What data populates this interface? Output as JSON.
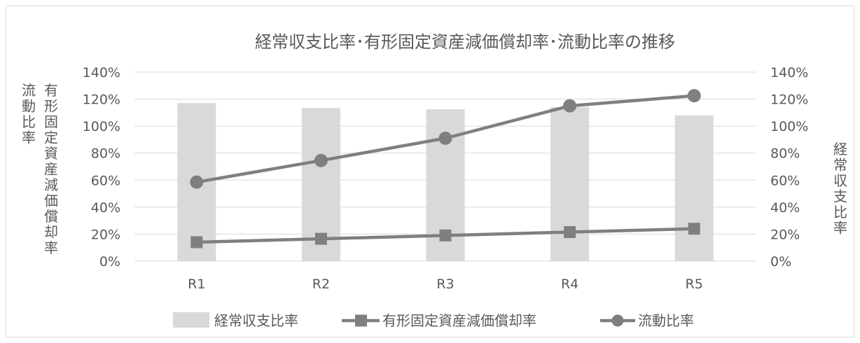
{
  "chart_data": {
    "type": "bar",
    "title": "経常収支比率･有形固定資産減価償却率･流動比率の推移",
    "categories": [
      "R1",
      "R2",
      "R3",
      "R4",
      "R5"
    ],
    "left_axis": {
      "labels": [
        "流動比率",
        "有形固定資産減価償却率"
      ],
      "ylim": [
        0,
        140
      ],
      "ticks": [
        "0%",
        "20%",
        "40%",
        "60%",
        "80%",
        "100%",
        "120%",
        "140%"
      ]
    },
    "right_axis": {
      "label": "経常収支比率",
      "ylim": [
        0,
        140
      ],
      "ticks": [
        "0%",
        "20%",
        "40%",
        "60%",
        "80%",
        "100%",
        "120%",
        "140%"
      ]
    },
    "series": [
      {
        "name": "経常収支比率",
        "type": "bar",
        "axis": "right",
        "color": "#d9d9d9",
        "values": [
          117,
          113.5,
          112.5,
          114,
          108
        ]
      },
      {
        "name": "有形固定資産減価償却率",
        "type": "line",
        "marker": "square",
        "axis": "left",
        "color": "#7f7f7f",
        "values": [
          14,
          16.5,
          19,
          21.5,
          24
        ]
      },
      {
        "name": "流動比率",
        "type": "line",
        "marker": "circle",
        "axis": "left",
        "color": "#7f7f7f",
        "values": [
          58.5,
          74.5,
          91,
          115,
          122.5
        ]
      }
    ],
    "grid": true,
    "legend": "bottom"
  }
}
